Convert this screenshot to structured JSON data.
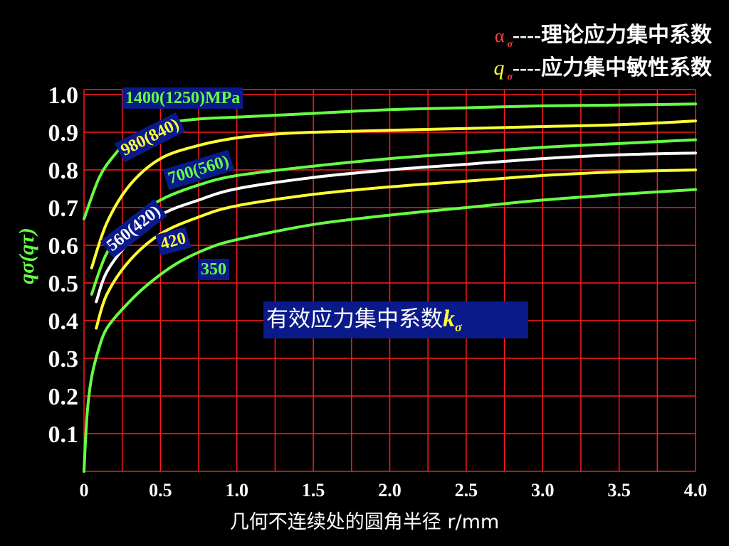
{
  "legend": {
    "alpha_symbol": "α",
    "alpha_subscript": "σ",
    "alpha_text": "----理论应力集中系数",
    "q_symbol": "q",
    "q_subscript": "σ",
    "q_text": "----应力集中敏性系数"
  },
  "annotation": {
    "box_text": "有效应力集中系数",
    "k_symbol": "k",
    "k_subscript": "σ"
  },
  "colors": {
    "grid": "#ff1a1a",
    "green": "#66ff44",
    "yellow": "#ffff33",
    "white": "#ffffff",
    "label_bg": "#0a1a8a"
  },
  "chart_data": {
    "type": "line",
    "xlabel": "几何不连续处的圆角半径  r/mm",
    "ylabel": "qσ(qτ)",
    "xlim": [
      0,
      4.0
    ],
    "ylim": [
      0,
      1.0
    ],
    "x_ticks": [
      "0",
      "0.5",
      "1.0",
      "1.5",
      "2.0",
      "2.5",
      "3.0",
      "3.5",
      "4.0"
    ],
    "y_ticks": [
      "0.1",
      "0.2",
      "0.3",
      "0.4",
      "0.5",
      "0.6",
      "0.7",
      "0.8",
      "0.9",
      "1.0"
    ],
    "grid": true,
    "series": [
      {
        "name": "1400(1250)MPa",
        "color": "green",
        "x": [
          0.0,
          0.1,
          0.2,
          0.3,
          0.5,
          0.75,
          1.0,
          1.5,
          2.0,
          2.5,
          3.0,
          3.5,
          4.0
        ],
        "y": [
          0.67,
          0.78,
          0.84,
          0.88,
          0.92,
          0.935,
          0.94,
          0.95,
          0.96,
          0.965,
          0.97,
          0.972,
          0.975
        ]
      },
      {
        "name": "980(840)",
        "color": "yellow",
        "x": [
          0.05,
          0.15,
          0.3,
          0.5,
          0.75,
          1.0,
          1.25,
          1.5,
          2.0,
          2.5,
          3.0,
          3.5,
          4.0
        ],
        "y": [
          0.54,
          0.66,
          0.76,
          0.83,
          0.865,
          0.885,
          0.895,
          0.9,
          0.905,
          0.91,
          0.915,
          0.92,
          0.93
        ]
      },
      {
        "name": "700(560)",
        "color": "green",
        "x": [
          0.05,
          0.15,
          0.3,
          0.5,
          0.75,
          1.0,
          1.5,
          2.0,
          2.5,
          3.0,
          3.5,
          4.0
        ],
        "y": [
          0.47,
          0.58,
          0.66,
          0.72,
          0.76,
          0.785,
          0.81,
          0.83,
          0.845,
          0.86,
          0.87,
          0.88
        ]
      },
      {
        "name": "560(420)",
        "color": "white",
        "x": [
          0.08,
          0.15,
          0.3,
          0.5,
          0.75,
          1.0,
          1.5,
          2.0,
          2.5,
          3.0,
          3.5,
          4.0
        ],
        "y": [
          0.45,
          0.53,
          0.61,
          0.68,
          0.72,
          0.75,
          0.78,
          0.8,
          0.815,
          0.83,
          0.84,
          0.845
        ]
      },
      {
        "name": "420",
        "color": "yellow",
        "x": [
          0.08,
          0.15,
          0.3,
          0.5,
          0.75,
          1.0,
          1.5,
          2.0,
          2.5,
          3.0,
          3.5,
          4.0
        ],
        "y": [
          0.38,
          0.47,
          0.56,
          0.63,
          0.675,
          0.705,
          0.735,
          0.755,
          0.77,
          0.785,
          0.795,
          0.8
        ]
      },
      {
        "name": "350",
        "color": "green",
        "x": [
          0.0,
          0.02,
          0.05,
          0.1,
          0.15,
          0.25,
          0.4,
          0.6,
          0.8,
          1.0,
          1.5,
          2.0,
          2.5,
          3.0,
          3.5,
          4.0
        ],
        "y": [
          0.0,
          0.15,
          0.25,
          0.33,
          0.38,
          0.43,
          0.49,
          0.55,
          0.59,
          0.615,
          0.655,
          0.68,
          0.7,
          0.72,
          0.735,
          0.748
        ]
      }
    ]
  }
}
